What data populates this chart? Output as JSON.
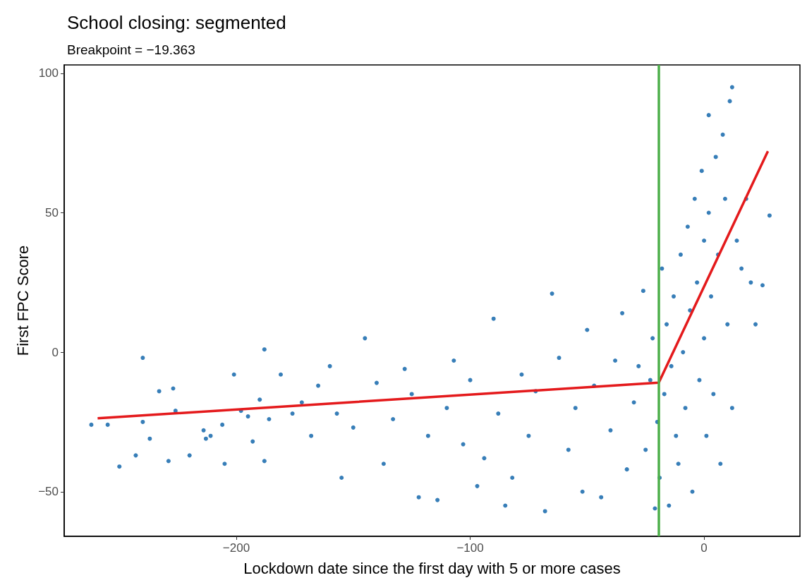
{
  "chart_data": {
    "type": "scatter",
    "title": "School closing: segmented",
    "subtitle": "Breakpoint = −19.363",
    "xlabel": "Lockdown date since the first day with 5 or more cases",
    "ylabel": "First FPC Score",
    "xlim": [
      -273.6,
      41
    ],
    "ylim": [
      -66,
      103
    ],
    "xticks": [
      {
        "value": -200,
        "label": "−200"
      },
      {
        "value": -100,
        "label": "−100"
      },
      0
    ],
    "yticks": [
      {
        "value": -50,
        "label": "−50"
      },
      0,
      50,
      100
    ],
    "grid": false,
    "marker": "circle",
    "ref_lines": [
      {
        "axis": "x",
        "value": -19.363,
        "color": "#4daf4a"
      }
    ],
    "series": [
      {
        "color": "#377eb8",
        "x": [
          -262,
          -255,
          -250,
          -243,
          -240,
          -240,
          -237,
          -233,
          -229,
          -227,
          -226,
          -220,
          -214,
          -213,
          -211,
          -206,
          -205,
          -201,
          -198,
          -195,
          -193,
          -190,
          -188,
          -188,
          -186,
          -181,
          -176,
          -172,
          -168,
          -165,
          -160,
          -157,
          -155,
          -150,
          -145,
          -140,
          -137,
          -133,
          -128,
          -125,
          -122,
          -118,
          -114,
          -110,
          -107,
          -103,
          -100,
          -97,
          -94,
          -90,
          -88,
          -85,
          -82,
          -78,
          -75,
          -72,
          -68,
          -65,
          -62,
          -58,
          -55,
          -52,
          -50,
          -47,
          -44,
          -40,
          -38,
          -35,
          -33,
          -30,
          -28,
          -26,
          -25,
          -23,
          -22,
          -21,
          -20,
          -19,
          -18,
          -17,
          -16,
          -15,
          -14,
          -13,
          -12,
          -11,
          -10,
          -9,
          -8,
          -7,
          -6,
          -5,
          -4,
          -3,
          -2,
          -1,
          0,
          0,
          1,
          2,
          2,
          3,
          4,
          5,
          6,
          7,
          8,
          9,
          10,
          11,
          12,
          12,
          14,
          16,
          18,
          20,
          22,
          25,
          28
        ],
        "values": [
          -26,
          -26,
          -41,
          -37,
          -25,
          -2,
          -31,
          -14,
          -39,
          -13,
          -21,
          -37,
          -28,
          -31,
          -30,
          -26,
          -40,
          -8,
          -21,
          -23,
          -32,
          -17,
          1,
          -39,
          -24,
          -8,
          -22,
          -18,
          -30,
          -12,
          -5,
          -22,
          -45,
          -27,
          5,
          -11,
          -40,
          -24,
          -6,
          -15,
          -52,
          -30,
          -53,
          -20,
          -3,
          -33,
          -10,
          -48,
          -38,
          12,
          -22,
          -55,
          -45,
          -8,
          -30,
          -14,
          -57,
          21,
          -2,
          -35,
          -20,
          -50,
          8,
          -12,
          -52,
          -28,
          -3,
          14,
          -42,
          -18,
          -5,
          22,
          -35,
          -10,
          5,
          -56,
          -25,
          -45,
          30,
          -15,
          10,
          -55,
          -5,
          20,
          -30,
          -40,
          35,
          0,
          -20,
          45,
          15,
          -50,
          55,
          25,
          -10,
          65,
          40,
          5,
          -30,
          85,
          50,
          20,
          -15,
          70,
          35,
          -40,
          78,
          55,
          10,
          90,
          95,
          -20,
          40,
          30,
          55,
          25,
          10,
          24,
          49
        ]
      },
      {
        "type": "line",
        "color": "#e41a1c",
        "marker": "none",
        "x": [
          -259.3,
          -19.363,
          27.3
        ],
        "values": [
          -23.7,
          -10.9,
          72.1
        ]
      }
    ]
  }
}
